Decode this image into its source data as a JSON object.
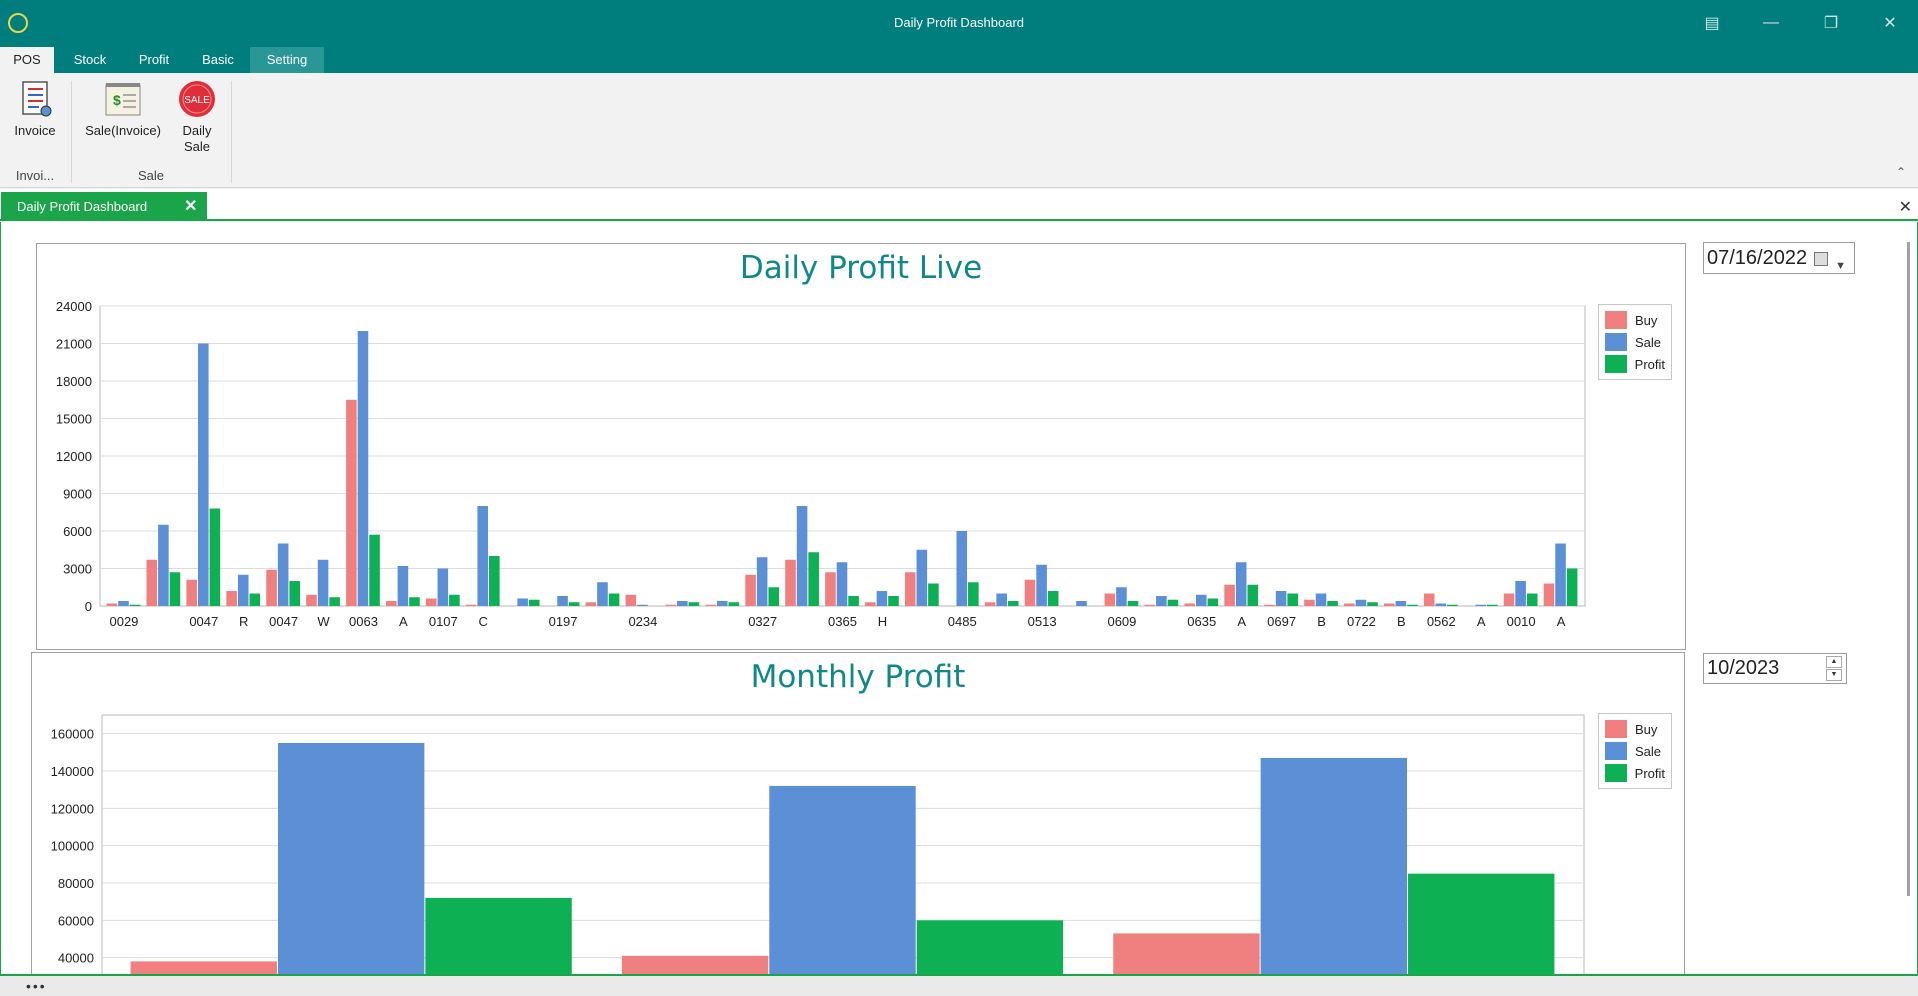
{
  "window": {
    "title": "Daily Profit Dashboard"
  },
  "ribbon_tabs": [
    "POS",
    "Stock",
    "Profit",
    "Basic",
    "Setting"
  ],
  "ribbon": {
    "invoice_label": "Invoice",
    "sale_invoice_label": "Sale(Invoice)",
    "daily_sale_label1": "Daily",
    "daily_sale_label2": "Sale",
    "sale_badge": "SALE",
    "group_invoice": "Invoi...",
    "group_sale": "Sale"
  },
  "doc_tab": {
    "label": "Daily Profit Dashboard"
  },
  "daily_date": "07/16/2022",
  "monthly_date": "10/2023",
  "colors": {
    "buy": "#f08080",
    "sale": "#5b8fd6",
    "profit": "#0db052",
    "teal": "#007d7d",
    "green": "#1aa54a"
  },
  "chart_data": [
    {
      "type": "bar",
      "title": "Daily Profit Live",
      "categories": [
        "0029",
        "",
        "0047",
        "R",
        "0047",
        "W",
        "0063",
        "A",
        "0107",
        "C",
        "",
        "0197",
        "",
        "0234",
        "",
        "",
        "0327",
        "",
        "0365",
        "H",
        "",
        "0485",
        "",
        "0513",
        "",
        "0609",
        "",
        "0635",
        "A",
        "0697",
        "B",
        "0722",
        "B",
        "0562",
        "A",
        "0010",
        "A"
      ],
      "series": [
        {
          "name": "Buy",
          "values": [
            200,
            3700,
            2100,
            1200,
            2900,
            900,
            16500,
            400,
            600,
            100,
            0,
            0,
            300,
            900,
            100,
            100,
            2500,
            3700,
            2700,
            300,
            2700,
            0,
            300,
            2100,
            0,
            1000,
            100,
            200,
            1700,
            100,
            500,
            200,
            200,
            1000,
            0,
            1000,
            1800
          ]
        },
        {
          "name": "Sale",
          "values": [
            400,
            6500,
            21000,
            2500,
            5000,
            3700,
            22000,
            3200,
            3000,
            8000,
            600,
            800,
            1900,
            100,
            400,
            400,
            3900,
            8000,
            3500,
            1200,
            4500,
            6000,
            1000,
            3300,
            400,
            1500,
            800,
            900,
            3500,
            1200,
            1000,
            500,
            400,
            200,
            100,
            2000,
            5000
          ]
        },
        {
          "name": "Profit",
          "values": [
            100,
            2700,
            7800,
            1000,
            2000,
            700,
            5700,
            700,
            900,
            4000,
            500,
            300,
            1000,
            0,
            300,
            300,
            1500,
            4300,
            800,
            800,
            1800,
            1900,
            400,
            1200,
            0,
            400,
            500,
            600,
            1700,
            1000,
            400,
            300,
            100,
            100,
            100,
            1000,
            3000
          ]
        }
      ],
      "ylim": [
        0,
        24000
      ],
      "yticks": [
        0,
        3000,
        6000,
        9000,
        12000,
        15000,
        18000,
        21000,
        24000
      ],
      "legend": "top-right",
      "grid": true
    },
    {
      "type": "bar",
      "title": "Monthly Profit",
      "categories": [
        "",
        "",
        ""
      ],
      "series": [
        {
          "name": "Buy",
          "values": [
            38000,
            41000,
            53000
          ]
        },
        {
          "name": "Sale",
          "values": [
            155000,
            132000,
            147000
          ]
        },
        {
          "name": "Profit",
          "values": [
            72000,
            60000,
            85000
          ]
        }
      ],
      "ylim": [
        20000,
        170000
      ],
      "yticks": [
        20000,
        40000,
        60000,
        80000,
        100000,
        120000,
        140000,
        160000
      ],
      "legend": "top-right",
      "grid": true
    }
  ]
}
